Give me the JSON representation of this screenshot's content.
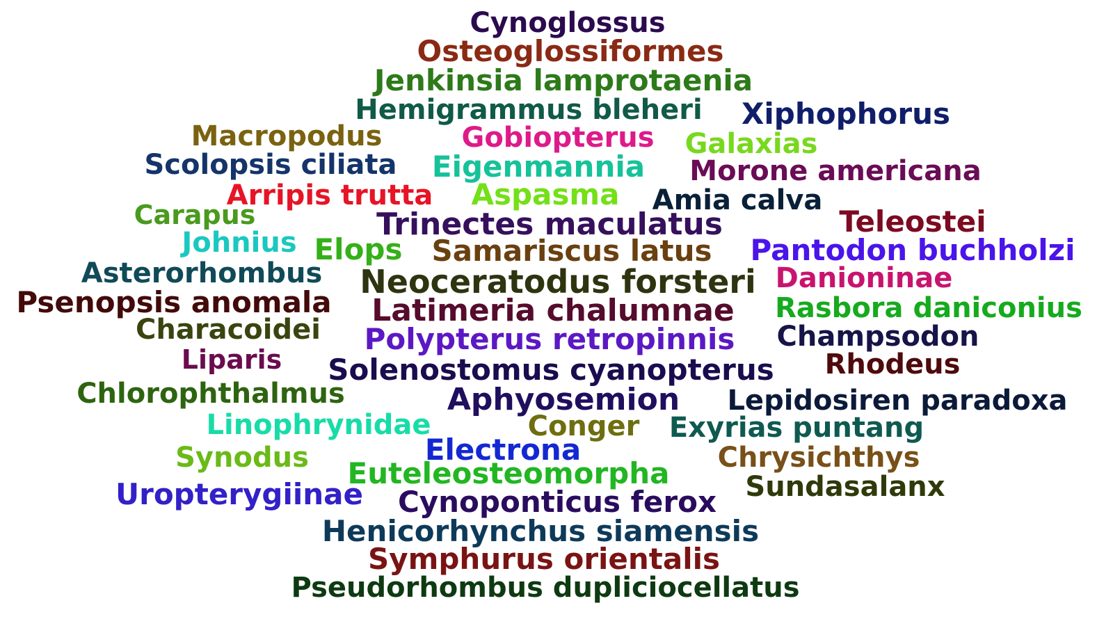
{
  "words": [
    {
      "text": "Cynoglossus",
      "color": "#2b0a4e"
    },
    {
      "text": "Osteoglossiformes",
      "color": "#8a2a14"
    },
    {
      "text": "Jenkinsia lamprotaenia",
      "color": "#2d7a1a"
    },
    {
      "text": "Hemigrammus bleheri",
      "color": "#115a48"
    },
    {
      "text": "Xiphophorus",
      "color": "#101e6a"
    },
    {
      "text": "Macropodus",
      "color": "#7a6210"
    },
    {
      "text": "Gobiopterus",
      "color": "#de1a8a"
    },
    {
      "text": "Galaxias",
      "color": "#78d81e"
    },
    {
      "text": "Scolopsis ciliata",
      "color": "#14346a"
    },
    {
      "text": "Eigenmannia",
      "color": "#16c29a"
    },
    {
      "text": "Morone americana",
      "color": "#6a0c56"
    },
    {
      "text": "Arripis trutta",
      "color": "#e61426"
    },
    {
      "text": "Aspasma",
      "color": "#74e018"
    },
    {
      "text": "Amia calva",
      "color": "#0a2038"
    },
    {
      "text": "Carapus",
      "color": "#4a9a1e"
    },
    {
      "text": "Trinectes maculatus",
      "color": "#36105c"
    },
    {
      "text": "Teleostei",
      "color": "#7c0a22"
    },
    {
      "text": "Johnius",
      "color": "#1ac8c0"
    },
    {
      "text": "Elops",
      "color": "#34b018"
    },
    {
      "text": "Samariscus latus",
      "color": "#6a4010"
    },
    {
      "text": "Pantodon buchholzi",
      "color": "#4a14ea"
    },
    {
      "text": "Asterorhombus",
      "color": "#104a58"
    },
    {
      "text": "Neoceratodus forsteri",
      "color": "#2e3410"
    },
    {
      "text": "Danioninae",
      "color": "#c8146e"
    },
    {
      "text": "Psenopsis anomala",
      "color": "#420a0a"
    },
    {
      "text": "Latimeria chalumnae",
      "color": "#560c2c"
    },
    {
      "text": "Rasbora daniconius",
      "color": "#16aa1e"
    },
    {
      "text": "Characoidei",
      "color": "#3a4410"
    },
    {
      "text": "Polypterus retropinnis",
      "color": "#5c18c4"
    },
    {
      "text": "Champsodon",
      "color": "#161448"
    },
    {
      "text": "Liparis",
      "color": "#6a0c4e"
    },
    {
      "text": "Solenostomus cyanopterus",
      "color": "#1a0c4e"
    },
    {
      "text": "Rhodeus",
      "color": "#4e0a0c"
    },
    {
      "text": "Chlorophthalmus",
      "color": "#2e6410"
    },
    {
      "text": "Aphyosemion",
      "color": "#200e5e"
    },
    {
      "text": "Lepidosiren paradoxa",
      "color": "#0c1a3a"
    },
    {
      "text": "Linophrynidae",
      "color": "#18dca8"
    },
    {
      "text": "Conger",
      "color": "#6e6e10"
    },
    {
      "text": "Exyrias puntang",
      "color": "#0e5a50"
    },
    {
      "text": "Electrona",
      "color": "#1428d2"
    },
    {
      "text": "Synodus",
      "color": "#6aba18"
    },
    {
      "text": "Chrysichthys",
      "color": "#785018"
    },
    {
      "text": "Euteleosteomorpha",
      "color": "#22b622"
    },
    {
      "text": "Sundasalanx",
      "color": "#2e3a0a"
    },
    {
      "text": "Uropterygiinae",
      "color": "#3220c8"
    },
    {
      "text": "Cynoponticus ferox",
      "color": "#2a0c5e"
    },
    {
      "text": "Henicorhynchus siamensis",
      "color": "#0e3a5a"
    },
    {
      "text": "Symphurus orientalis",
      "color": "#7a1414"
    },
    {
      "text": "Pseudorhombus dupliciocellatus",
      "color": "#0e3a12"
    }
  ]
}
